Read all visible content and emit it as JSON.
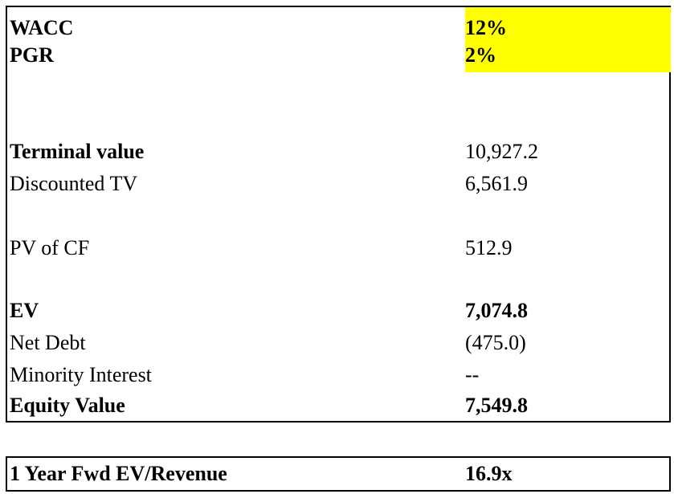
{
  "colors": {
    "highlight": "#ffff00",
    "border": "#000000",
    "text": "#000000"
  },
  "rows": {
    "wacc": {
      "label": "WACC",
      "value": "12%"
    },
    "pgr": {
      "label": "PGR",
      "value": "2%"
    },
    "terminal_value": {
      "label": "Terminal value",
      "value": "10,927.2"
    },
    "discounted_tv": {
      "label": "Discounted TV",
      "value": "6,561.9"
    },
    "pv_of_cf": {
      "label": "PV of CF",
      "value": "512.9"
    },
    "ev": {
      "label": "EV",
      "value": "7,074.8"
    },
    "net_debt": {
      "label": "Net Debt",
      "value": "(475.0)"
    },
    "minority_interest": {
      "label": "Minority Interest",
      "value": "--"
    },
    "equity_value": {
      "label": "Equity Value",
      "value": "7,549.8"
    }
  },
  "summary": {
    "label": "1 Year Fwd EV/Revenue",
    "value": "16.9x"
  }
}
